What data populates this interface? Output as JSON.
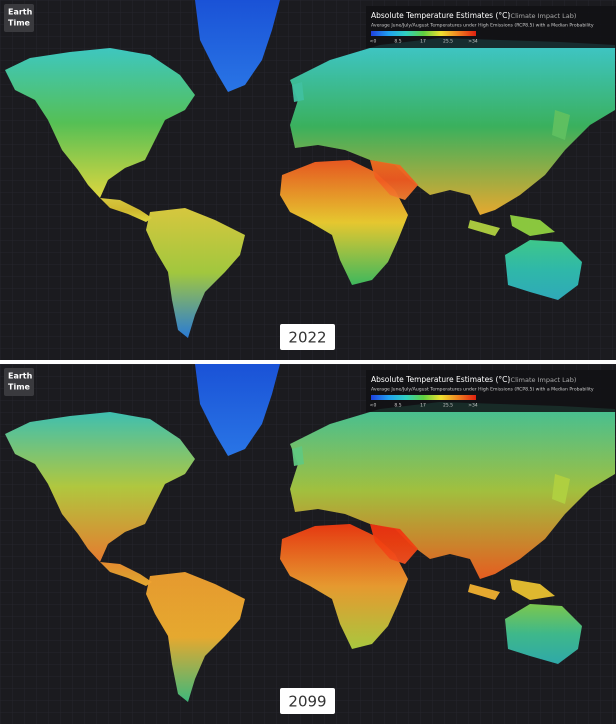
{
  "panels": [
    {
      "logo": [
        "Earth",
        "Time"
      ],
      "legend": {
        "title": "Absolute Temperature Estimates (°C)",
        "source": "(Climate Impact Lab)",
        "subtitle": "Average June/July/August Temperatures under High Emissions (RCP8.5) with a Median Probability",
        "ticks": [
          "<0",
          "8.5",
          "17",
          "25.5",
          ">34"
        ]
      },
      "year": "2022"
    },
    {
      "logo": [
        "Earth",
        "Time"
      ],
      "legend": {
        "title": "Absolute Temperature Estimates (°C)",
        "source": "(Climate Impact Lab)",
        "subtitle": "Average June/July/August Temperatures under High Emissions (RCP8.5) with a Median Probability",
        "ticks": [
          "<0",
          "8.5",
          "17",
          "25.5",
          ">34"
        ]
      },
      "year": "2099"
    }
  ]
}
